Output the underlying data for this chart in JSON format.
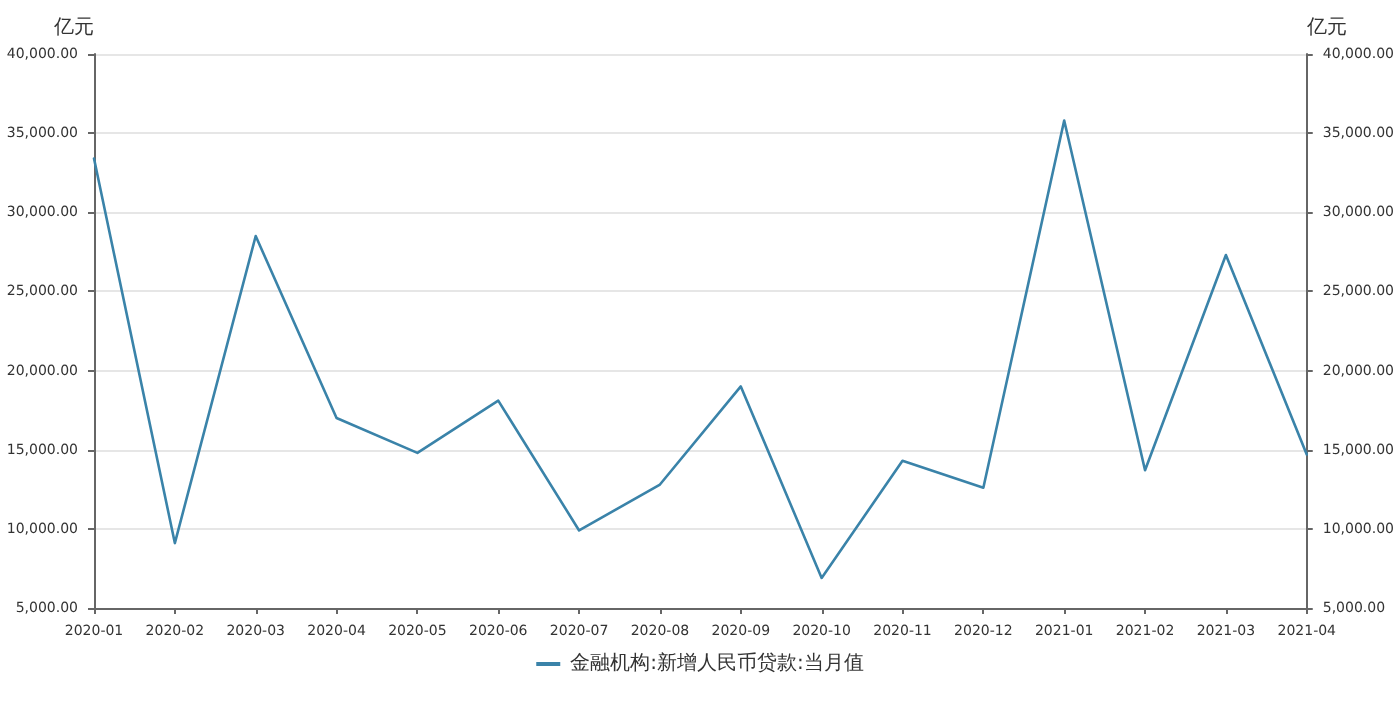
{
  "chart_data": {
    "type": "line",
    "ylabel": "亿元",
    "y2label": "亿元",
    "categories": [
      "2020-01",
      "2020-02",
      "2020-03",
      "2020-04",
      "2020-05",
      "2020-06",
      "2020-07",
      "2020-08",
      "2020-09",
      "2020-10",
      "2020-11",
      "2020-12",
      "2021-01",
      "2021-02",
      "2021-03",
      "2021-04"
    ],
    "series": [
      {
        "name": "金融机构:新增人民币贷款:当月值",
        "color": "#3a83a9",
        "values": [
          33400,
          9100,
          28500,
          17000,
          14800,
          18100,
          9900,
          12800,
          19000,
          6900,
          14300,
          12600,
          35800,
          13700,
          27300,
          14700
        ]
      }
    ],
    "ylim": [
      5000,
      40000
    ],
    "yticks": [
      {
        "value": 5000,
        "label": "5,000.00"
      },
      {
        "value": 10000,
        "label": "10,000.00"
      },
      {
        "value": 15000,
        "label": "15,000.00"
      },
      {
        "value": 20000,
        "label": "20,000.00"
      },
      {
        "value": 25000,
        "label": "25,000.00"
      },
      {
        "value": 30000,
        "label": "30,000.00"
      },
      {
        "value": 35000,
        "label": "35,000.00"
      },
      {
        "value": 40000,
        "label": "40,000.00"
      }
    ],
    "y2lim": [
      5000,
      40000
    ],
    "y2ticks": [
      {
        "value": 5000,
        "label": "5,000.00"
      },
      {
        "value": 10000,
        "label": "10,000.00"
      },
      {
        "value": 15000,
        "label": "15,000.00"
      },
      {
        "value": 20000,
        "label": "20,000.00"
      },
      {
        "value": 25000,
        "label": "25,000.00"
      },
      {
        "value": 30000,
        "label": "30,000.00"
      },
      {
        "value": 35000,
        "label": "35,000.00"
      },
      {
        "value": 40000,
        "label": "40,000.00"
      }
    ],
    "grid": "y",
    "legend": "bottom",
    "marker": "none",
    "line_style": "solid"
  }
}
